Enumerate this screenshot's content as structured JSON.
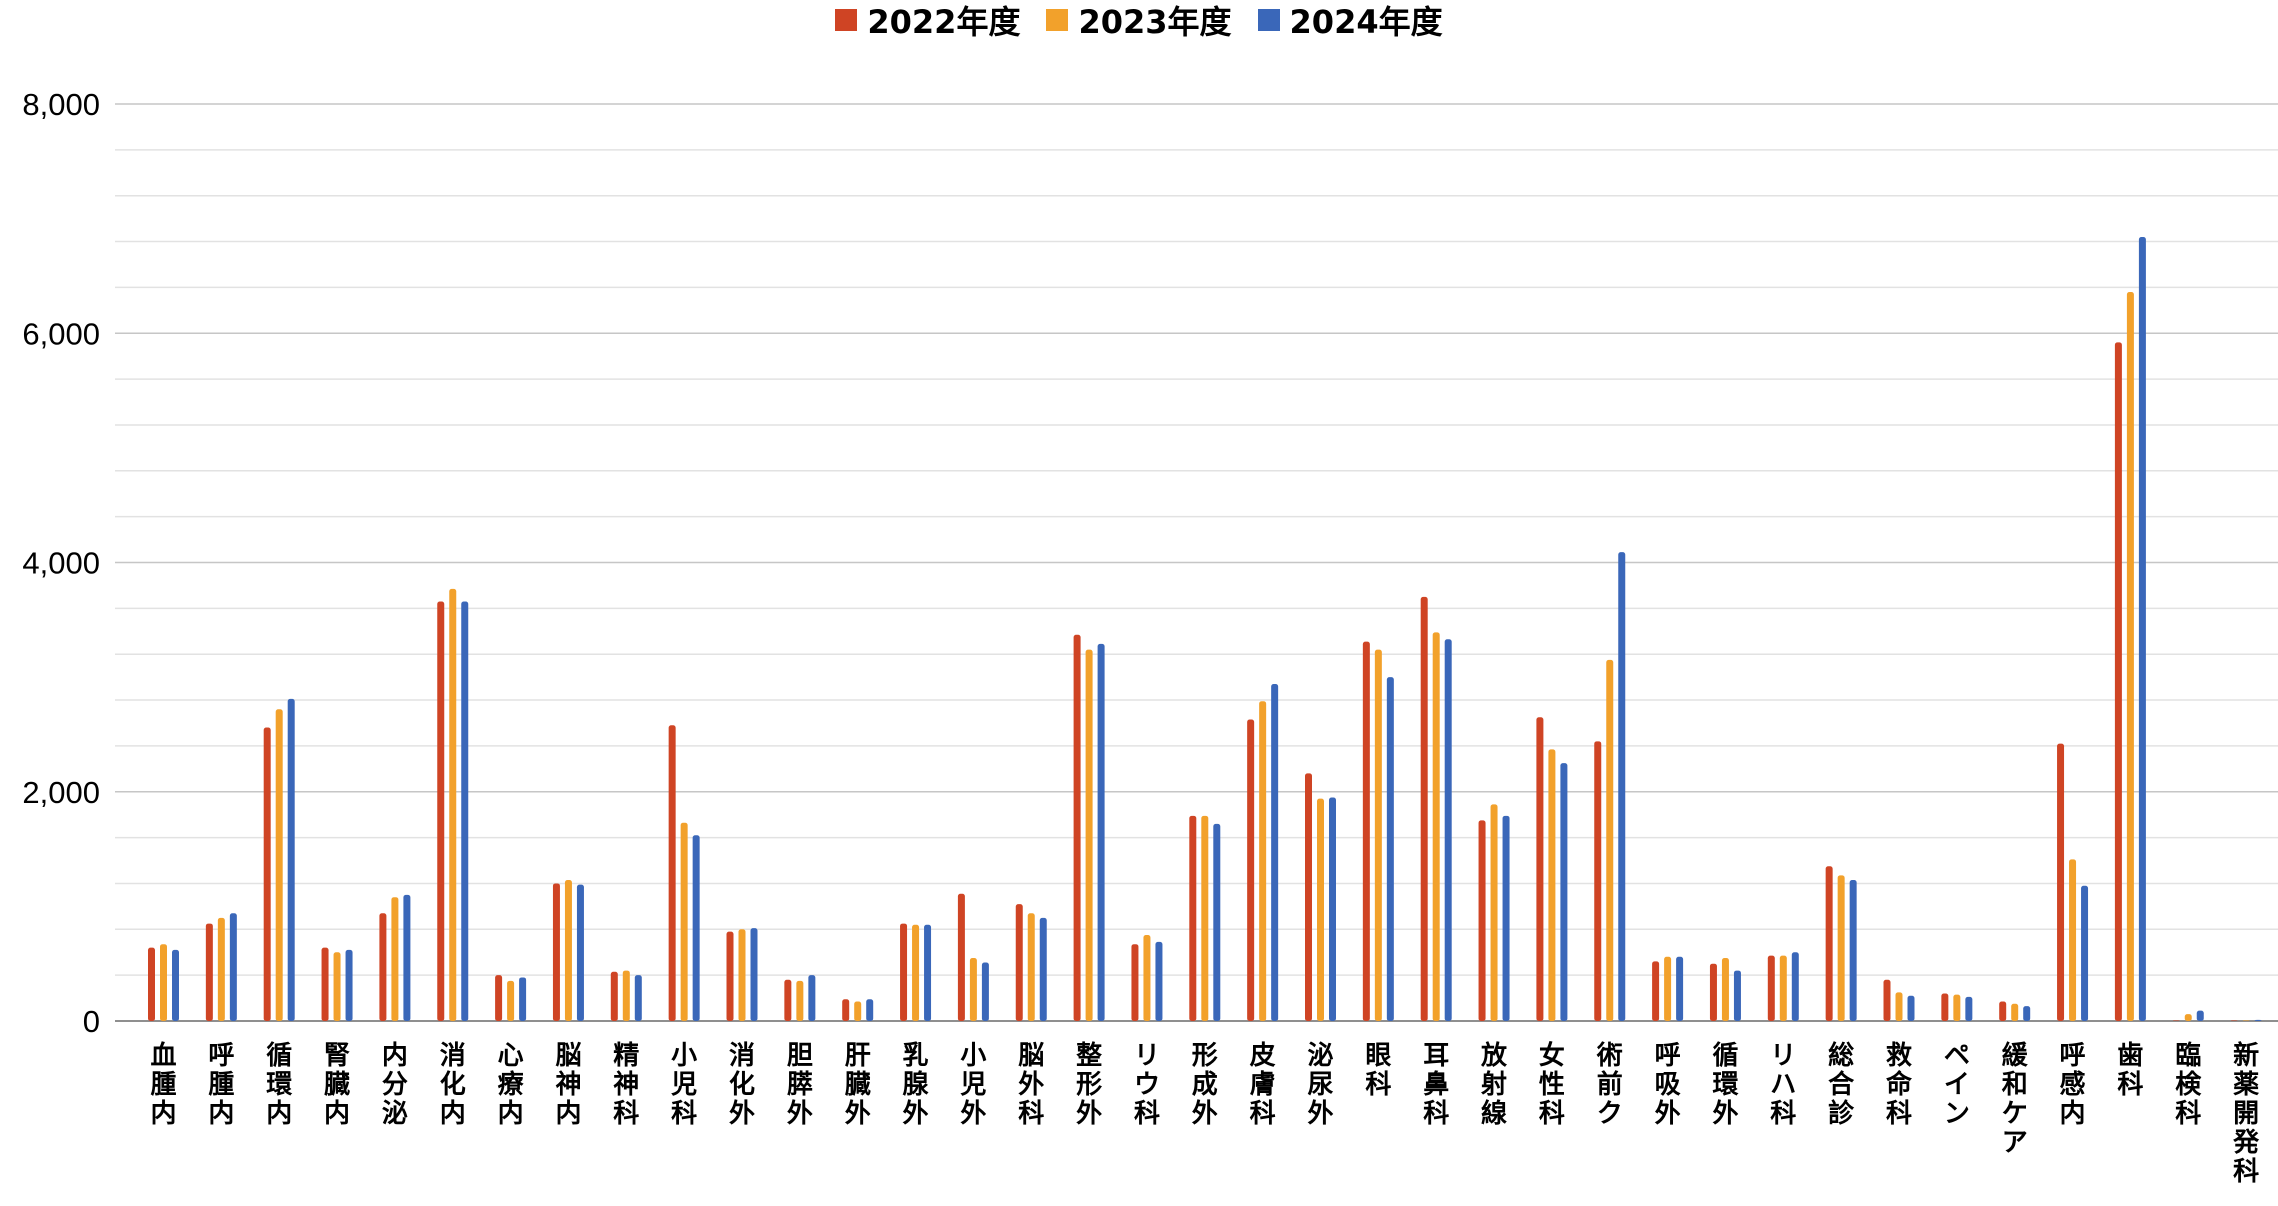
{
  "chart_data": {
    "type": "bar",
    "legend_position": "top",
    "grid": true,
    "ylim": [
      0,
      8000
    ],
    "yticks": [
      "0",
      "2,000",
      "4,000",
      "6,000",
      "8,000"
    ],
    "colors": {
      "2022年度": "#cf4424",
      "2023年度": "#f2a12b",
      "2024年度": "#3a67b9"
    },
    "categories": [
      "血腫内",
      "呼腫内",
      "循環内",
      "腎臓内",
      "内分泌",
      "消化内",
      "心療内",
      "脳神内",
      "精神科",
      "小児科",
      "消化外",
      "胆膵外",
      "肝臓外",
      "乳腺外",
      "小児外",
      "脳外科",
      "整形外",
      "リウ科",
      "形成外",
      "皮膚科",
      "泌尿外",
      "眼科",
      "耳鼻科",
      "放射線",
      "女性科",
      "術前ク",
      "呼吸外",
      "循環外",
      "リハ科",
      "総合診",
      "救命科",
      "ペイン",
      "緩和ケア",
      "呼感内",
      "歯科",
      "臨検科",
      "新薬開発科"
    ],
    "series": [
      {
        "name": "2022年度",
        "values": [
          640,
          850,
          2560,
          640,
          940,
          3660,
          400,
          1200,
          430,
          2580,
          780,
          360,
          190,
          850,
          1110,
          1020,
          3370,
          670,
          1790,
          2630,
          2160,
          3310,
          3700,
          1750,
          2650,
          2440,
          520,
          500,
          570,
          1350,
          360,
          240,
          170,
          2420,
          5920,
          0,
          0
        ]
      },
      {
        "name": "2023年度",
        "values": [
          670,
          900,
          2720,
          600,
          1080,
          3770,
          350,
          1230,
          440,
          1730,
          800,
          350,
          170,
          840,
          550,
          940,
          3240,
          750,
          1790,
          2790,
          1940,
          3240,
          3390,
          1890,
          2370,
          3150,
          560,
          550,
          570,
          1270,
          250,
          230,
          150,
          1410,
          6360,
          60,
          0
        ]
      },
      {
        "name": "2024年度",
        "values": [
          620,
          940,
          2810,
          620,
          1100,
          3660,
          380,
          1190,
          400,
          1620,
          810,
          400,
          190,
          840,
          510,
          900,
          3290,
          690,
          1720,
          2940,
          1950,
          3000,
          3330,
          1790,
          2250,
          4090,
          560,
          440,
          600,
          1230,
          220,
          210,
          130,
          1180,
          6840,
          90,
          10
        ]
      }
    ]
  }
}
